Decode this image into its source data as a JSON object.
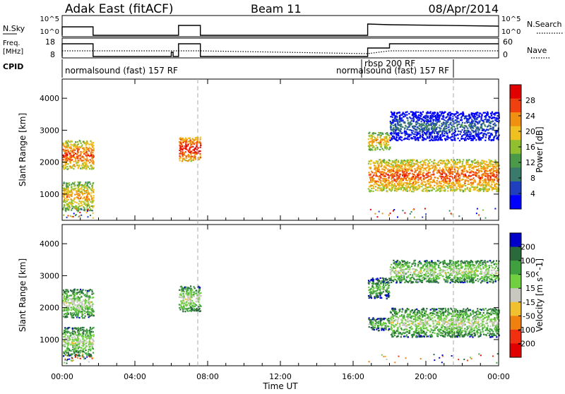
{
  "header": {
    "station_title": "Adak East (fitACF)",
    "beam_label": "Beam 11",
    "date_label": "08/Apr/2014"
  },
  "strip_nsky": {
    "left_label": "N.Sky",
    "left_ticks": [
      "10^5",
      "10^0"
    ],
    "right_label": "N.Search",
    "right_ticks": [
      "10^5",
      "10^0"
    ]
  },
  "strip_freq": {
    "left_label_line1": "Freq.",
    "left_label_line2": "[MHz]",
    "left_ticks": [
      "18",
      "8"
    ],
    "right_label": "Nave",
    "right_ticks": [
      "60",
      "0"
    ]
  },
  "strip_cpid": {
    "label": "CPID",
    "entries": [
      {
        "text": "normalsound (fast) 157 RF",
        "start_hour": 0
      },
      {
        "text": "rbsp 200 RF",
        "start_hour": 16.8
      },
      {
        "text": "normalsound (fast) 157 RF",
        "start_hour": 22.0
      }
    ]
  },
  "colors": {
    "power": [
      "#0000ff",
      "#1f3fbf",
      "#3a7a6a",
      "#4a9a4a",
      "#90c030",
      "#f0c020",
      "#f09010",
      "#f04010",
      "#e00000"
    ],
    "velocity": [
      "#0000c8",
      "#2a6a3a",
      "#40a040",
      "#70d040",
      "#c8c8c0",
      "#f0c030",
      "#f08010",
      "#f03010",
      "#e00000"
    ]
  },
  "chart_data": [
    {
      "type": "heatmap",
      "title": "Power",
      "ylabel": "Slant Range [km]",
      "ylim": [
        180,
        4600
      ],
      "yticks": [
        1000,
        2000,
        3000,
        4000
      ],
      "colorbar_label": "Power [dB]",
      "colorbar_ticks": [
        "4",
        "8",
        "12",
        "16",
        "20",
        "24",
        "28"
      ],
      "xlim_hours": [
        0,
        24
      ],
      "echo_regions": [
        {
          "t_start": 0.0,
          "t_end": 1.7,
          "r_start": 1800,
          "r_end": 2700,
          "level": 7
        },
        {
          "t_start": 0.0,
          "t_end": 1.7,
          "r_start": 500,
          "r_end": 1400,
          "level": 6
        },
        {
          "t_start": 6.4,
          "t_end": 7.6,
          "r_start": 2050,
          "r_end": 2800,
          "level": 8
        },
        {
          "t_start": 16.8,
          "t_end": 18.0,
          "r_start": 2400,
          "r_end": 2950,
          "level": 6
        },
        {
          "t_start": 16.8,
          "t_end": 24.0,
          "r_start": 1100,
          "r_end": 2100,
          "level": 7
        },
        {
          "t_start": 18.0,
          "t_end": 24.0,
          "r_start": 2700,
          "r_end": 3600,
          "level": 2
        }
      ]
    },
    {
      "type": "heatmap",
      "title": "Velocity",
      "ylabel": "Slant Range [km]",
      "ylim": [
        180,
        4600
      ],
      "yticks": [
        1000,
        2000,
        3000,
        4000
      ],
      "colorbar_label": "Velocity [m s^-1]",
      "colorbar_ticks": [
        "200",
        "100",
        "50",
        "15",
        "-15",
        "-50",
        "-100",
        "-200"
      ],
      "xlabel": "Time UT",
      "xticks": [
        "00:00",
        "04:00",
        "08:00",
        "12:00",
        "16:00",
        "20:00",
        "00:00"
      ],
      "xlim_hours": [
        0,
        24
      ],
      "echo_regions": [
        {
          "t_start": 0.0,
          "t_end": 1.7,
          "r_start": 1700,
          "r_end": 2600,
          "level": 4
        },
        {
          "t_start": 0.0,
          "t_end": 1.7,
          "r_start": 500,
          "r_end": 1400,
          "level": 4
        },
        {
          "t_start": 6.4,
          "t_end": 7.6,
          "r_start": 1900,
          "r_end": 2700,
          "level": 4
        },
        {
          "t_start": 16.8,
          "t_end": 18.0,
          "r_start": 2300,
          "r_end": 2950,
          "level": 3
        },
        {
          "t_start": 16.8,
          "t_end": 18.0,
          "r_start": 1300,
          "r_end": 1700,
          "level": 3
        },
        {
          "t_start": 18.0,
          "t_end": 24.0,
          "r_start": 1100,
          "r_end": 2000,
          "level": 4
        },
        {
          "t_start": 18.0,
          "t_end": 24.0,
          "r_start": 2800,
          "r_end": 3500,
          "level": 4
        }
      ]
    }
  ]
}
